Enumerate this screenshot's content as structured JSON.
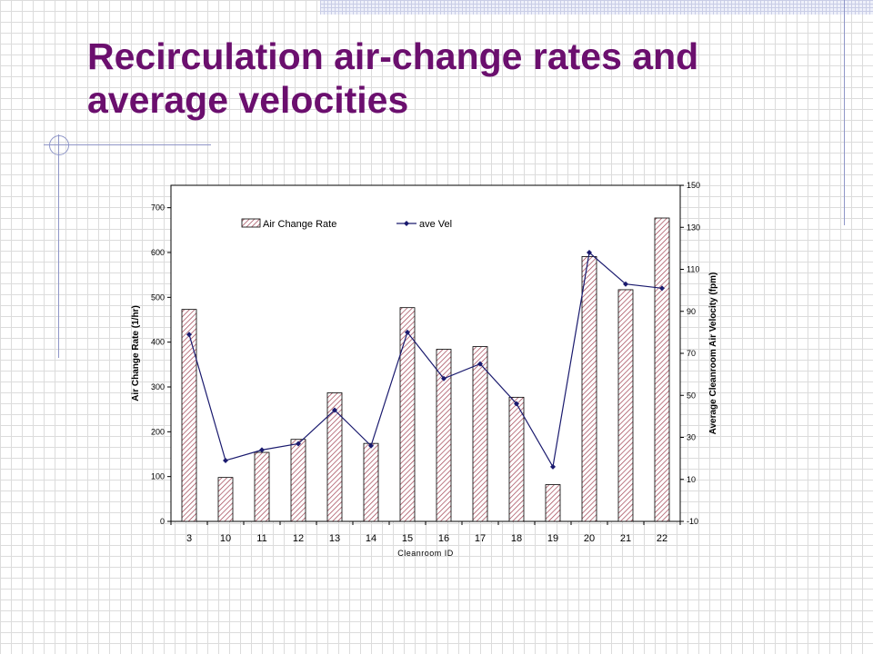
{
  "slide": {
    "title": "Recirculation air-change rates and average velocities"
  },
  "colors": {
    "title": "#6b0f6e",
    "line": "#1a1a6e",
    "bar_hatch": "#a04050",
    "decor": "#8f96c8"
  },
  "chart_data": {
    "type": "bar",
    "categories": [
      "3",
      "10",
      "11",
      "12",
      "13",
      "14",
      "15",
      "16",
      "17",
      "18",
      "19",
      "20",
      "21",
      "22"
    ],
    "series": [
      {
        "name": "Air Change Rate",
        "type": "bar",
        "axis": "left",
        "values": [
          473,
          98,
          154,
          183,
          287,
          174,
          477,
          384,
          390,
          277,
          82,
          591,
          517,
          677
        ]
      },
      {
        "name": "ave Vel",
        "type": "line",
        "axis": "right",
        "values": [
          79,
          19,
          24,
          27,
          43,
          26,
          80,
          58,
          65,
          46,
          16,
          118,
          103,
          101
        ]
      }
    ],
    "xlabel": "Cleanroom ID",
    "ylabel": "Air Change Rate (1/hr)",
    "y2label": "Average Cleanroom Air Velocity (fpm)",
    "ylim": [
      0,
      750
    ],
    "y2lim": [
      -10,
      150
    ],
    "yticks": [
      "0",
      "100",
      "200",
      "300",
      "400",
      "500",
      "600",
      "700"
    ],
    "y2ticks": [
      "-10",
      "10",
      "30",
      "50",
      "70",
      "90",
      "110",
      "130",
      "150"
    ],
    "legend": {
      "position": "top-left",
      "entries": [
        "Air Change Rate",
        "ave Vel"
      ]
    },
    "grid": false
  }
}
